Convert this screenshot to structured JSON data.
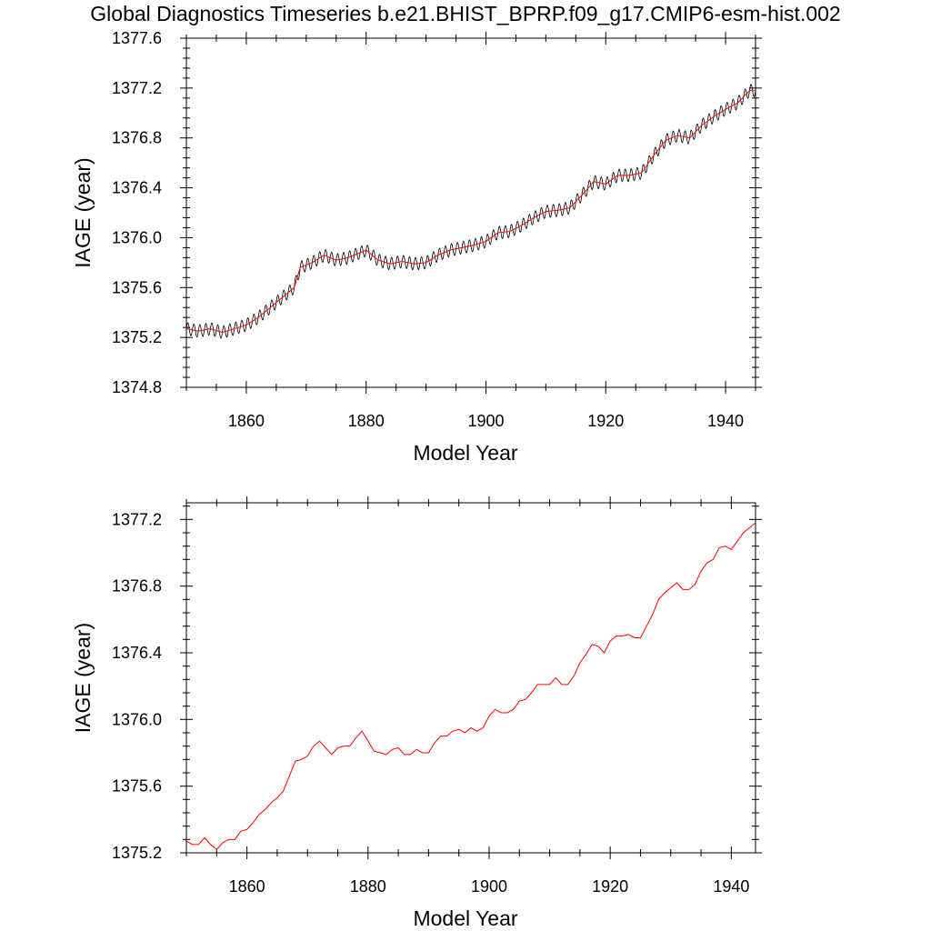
{
  "page": {
    "title": "Global Diagnostics Timeseries b.e21.BHIST_BPRP.f09_g17.CMIP6-esm-hist.002"
  },
  "colors": {
    "monthly": "#000000",
    "annual": "#ff0000",
    "axis": "#000000"
  },
  "chart_data": [
    {
      "type": "line",
      "xlabel": "Model Year",
      "ylabel": "IAGE (year)",
      "xlim": [
        1850,
        1945
      ],
      "ylim": [
        1374.8,
        1377.6
      ],
      "xticks": [
        1860,
        1880,
        1900,
        1920,
        1940
      ],
      "yticks": [
        1374.8,
        1375.2,
        1375.6,
        1376.0,
        1376.4,
        1376.8,
        1377.2,
        1377.6
      ],
      "ytick_labels": [
        "1374.8",
        "1375.2",
        "1375.6",
        "1376.0",
        "1376.4",
        "1376.8",
        "1377.2",
        "1377.6"
      ],
      "seasonal_amplitude": 0.05,
      "series": [
        {
          "style": "monthly",
          "x": [
            1850,
            1852,
            1854,
            1856,
            1858,
            1860,
            1862,
            1864,
            1866,
            1868,
            1869,
            1871,
            1873,
            1875,
            1877,
            1879,
            1880,
            1882,
            1884,
            1886,
            1888,
            1890,
            1892,
            1894,
            1896,
            1898,
            1900,
            1902,
            1904,
            1906,
            1908,
            1910,
            1912,
            1914,
            1916,
            1918,
            1920,
            1922,
            1924,
            1926,
            1928,
            1930,
            1932,
            1934,
            1936,
            1938,
            1940,
            1942,
            1944,
            1945
          ],
          "y": [
            1375.27,
            1375.25,
            1375.27,
            1375.24,
            1375.27,
            1375.3,
            1375.36,
            1375.44,
            1375.52,
            1375.6,
            1375.76,
            1375.8,
            1375.86,
            1375.82,
            1375.84,
            1375.88,
            1375.9,
            1375.82,
            1375.79,
            1375.81,
            1375.79,
            1375.8,
            1375.86,
            1375.9,
            1375.92,
            1375.94,
            1375.97,
            1376.04,
            1376.05,
            1376.1,
            1376.16,
            1376.21,
            1376.22,
            1376.24,
            1376.34,
            1376.45,
            1376.43,
            1376.5,
            1376.5,
            1376.52,
            1376.66,
            1376.78,
            1376.82,
            1376.8,
            1376.9,
            1376.97,
            1377.03,
            1377.08,
            1377.18,
            1377.18
          ]
        },
        {
          "style": "annual",
          "x": [
            1850,
            1852,
            1854,
            1856,
            1858,
            1860,
            1862,
            1864,
            1866,
            1868,
            1869,
            1871,
            1873,
            1875,
            1877,
            1879,
            1880,
            1882,
            1884,
            1886,
            1888,
            1890,
            1892,
            1894,
            1896,
            1898,
            1900,
            1902,
            1904,
            1906,
            1908,
            1910,
            1912,
            1914,
            1916,
            1918,
            1920,
            1922,
            1924,
            1926,
            1928,
            1930,
            1932,
            1934,
            1936,
            1938,
            1940,
            1942,
            1944,
            1945
          ],
          "y": [
            1375.27,
            1375.25,
            1375.27,
            1375.24,
            1375.27,
            1375.3,
            1375.36,
            1375.44,
            1375.52,
            1375.6,
            1375.76,
            1375.8,
            1375.86,
            1375.82,
            1375.84,
            1375.88,
            1375.9,
            1375.82,
            1375.79,
            1375.81,
            1375.79,
            1375.8,
            1375.86,
            1375.9,
            1375.92,
            1375.94,
            1375.97,
            1376.04,
            1376.05,
            1376.1,
            1376.16,
            1376.21,
            1376.22,
            1376.24,
            1376.34,
            1376.45,
            1376.43,
            1376.5,
            1376.5,
            1376.52,
            1376.66,
            1376.78,
            1376.82,
            1376.8,
            1376.9,
            1376.97,
            1377.03,
            1377.08,
            1377.18,
            1377.18
          ]
        }
      ]
    },
    {
      "type": "line",
      "xlabel": "Model Year",
      "ylabel": "IAGE (year)",
      "xlim": [
        1850,
        1944
      ],
      "ylim": [
        1375.2,
        1377.3
      ],
      "xticks": [
        1860,
        1880,
        1900,
        1920,
        1940
      ],
      "yticks": [
        1375.2,
        1375.6,
        1376.0,
        1376.4,
        1376.8,
        1377.2
      ],
      "ytick_labels": [
        "1375.2",
        "1375.6",
        "1376.0",
        "1376.4",
        "1376.8",
        "1377.2"
      ],
      "series": [
        {
          "style": "annual",
          "x": [
            1850,
            1851,
            1852,
            1853,
            1854,
            1855,
            1856,
            1857,
            1858,
            1859,
            1860,
            1861,
            1862,
            1863,
            1864,
            1865,
            1866,
            1867,
            1868,
            1869,
            1870,
            1871,
            1872,
            1873,
            1874,
            1875,
            1876,
            1877,
            1878,
            1879,
            1880,
            1881,
            1882,
            1883,
            1884,
            1885,
            1886,
            1887,
            1888,
            1889,
            1890,
            1891,
            1892,
            1893,
            1894,
            1895,
            1896,
            1897,
            1898,
            1899,
            1900,
            1901,
            1902,
            1903,
            1904,
            1905,
            1906,
            1907,
            1908,
            1909,
            1910,
            1911,
            1912,
            1913,
            1914,
            1915,
            1916,
            1917,
            1918,
            1919,
            1920,
            1921,
            1922,
            1923,
            1924,
            1925,
            1926,
            1927,
            1928,
            1929,
            1930,
            1931,
            1932,
            1933,
            1934,
            1935,
            1936,
            1937,
            1938,
            1939,
            1940,
            1941,
            1942,
            1943,
            1944
          ],
          "y": [
            1375.27,
            1375.25,
            1375.25,
            1375.29,
            1375.25,
            1375.22,
            1375.26,
            1375.28,
            1375.28,
            1375.33,
            1375.34,
            1375.38,
            1375.43,
            1375.46,
            1375.5,
            1375.53,
            1375.57,
            1375.66,
            1375.75,
            1375.76,
            1375.78,
            1375.84,
            1375.87,
            1375.83,
            1375.79,
            1375.83,
            1375.84,
            1375.84,
            1375.89,
            1375.93,
            1375.87,
            1375.81,
            1375.8,
            1375.79,
            1375.82,
            1375.83,
            1375.79,
            1375.79,
            1375.82,
            1375.8,
            1375.8,
            1375.86,
            1375.9,
            1375.9,
            1375.93,
            1375.94,
            1375.92,
            1375.95,
            1375.93,
            1375.95,
            1376.02,
            1376.06,
            1376.04,
            1376.04,
            1376.06,
            1376.11,
            1376.12,
            1376.16,
            1376.21,
            1376.21,
            1376.21,
            1376.25,
            1376.21,
            1376.21,
            1376.26,
            1376.34,
            1376.39,
            1376.45,
            1376.44,
            1376.4,
            1376.47,
            1376.5,
            1376.5,
            1376.51,
            1376.49,
            1376.49,
            1376.56,
            1376.63,
            1376.72,
            1376.76,
            1376.79,
            1376.82,
            1376.78,
            1376.78,
            1376.81,
            1376.89,
            1376.94,
            1376.96,
            1377.03,
            1377.04,
            1377.02,
            1377.07,
            1377.12,
            1377.15,
            1377.18
          ]
        }
      ]
    }
  ]
}
